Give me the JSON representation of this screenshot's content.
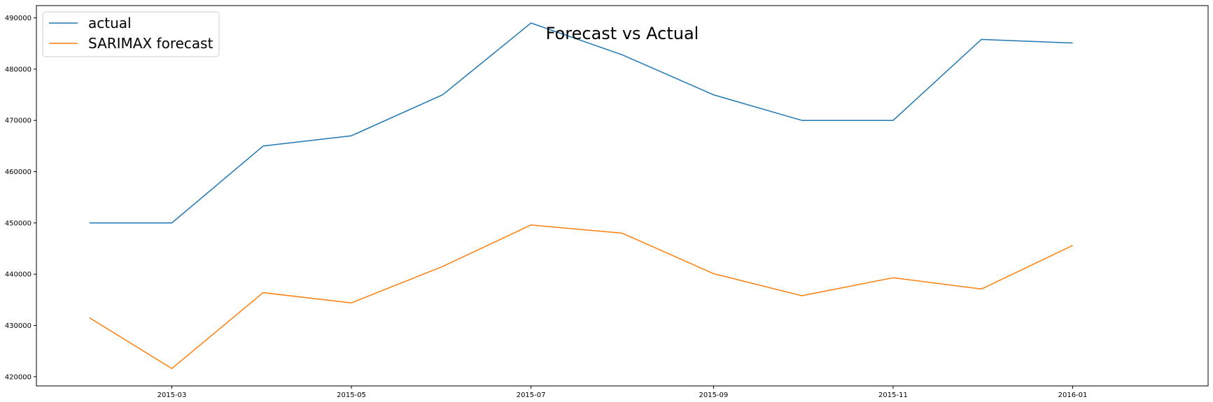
{
  "chart_data": {
    "type": "line",
    "title": "Forecast vs Actual",
    "xlabel": "",
    "ylabel": "",
    "x": [
      "2015-02-01",
      "2015-03-01",
      "2015-04-01",
      "2015-05-01",
      "2015-06-01",
      "2015-07-01",
      "2015-08-01",
      "2015-09-01",
      "2015-10-01",
      "2015-11-01",
      "2015-12-01",
      "2016-01-01"
    ],
    "xticks": [
      "2015-03",
      "2015-05",
      "2015-07",
      "2015-09",
      "2015-11",
      "2016-01"
    ],
    "xlim": [
      "2015-01-14",
      "2016-02-16"
    ],
    "yticks": [
      420000,
      430000,
      440000,
      450000,
      460000,
      470000,
      480000,
      490000
    ],
    "ylim": [
      418200,
      492400
    ],
    "grid": false,
    "legend_position": "top-left",
    "series": [
      {
        "name": "actual",
        "color": "#1f77b4",
        "values": [
          450000,
          450000,
          465000,
          467000,
          475000,
          489000,
          482800,
          475000,
          470000,
          470000,
          485800,
          485100
        ]
      },
      {
        "name": "SARIMAX forecast",
        "color": "#ff7f0e",
        "values": [
          431500,
          421600,
          436400,
          434400,
          441500,
          449600,
          448000,
          440100,
          435800,
          439300,
          437100,
          445600
        ]
      }
    ]
  }
}
